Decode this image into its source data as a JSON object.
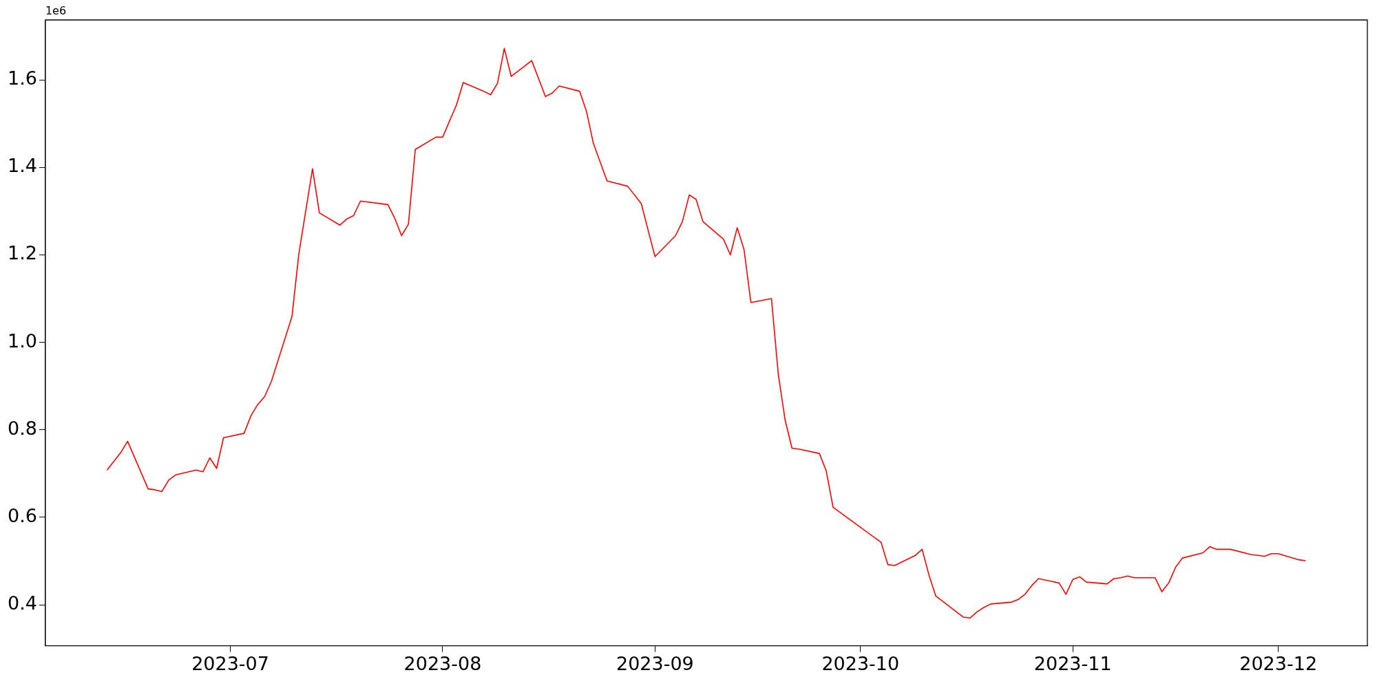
{
  "chart_data": {
    "type": "line",
    "annotations": [
      "1e6"
    ],
    "x": [
      "2023-06-13",
      "2023-06-14",
      "2023-06-15",
      "2023-06-16",
      "2023-06-19",
      "2023-06-20",
      "2023-06-21",
      "2023-06-22",
      "2023-06-23",
      "2023-06-26",
      "2023-06-27",
      "2023-06-28",
      "2023-06-29",
      "2023-06-30",
      "2023-07-03",
      "2023-07-04",
      "2023-07-05",
      "2023-07-06",
      "2023-07-07",
      "2023-07-10",
      "2023-07-11",
      "2023-07-13",
      "2023-07-14",
      "2023-07-17",
      "2023-07-18",
      "2023-07-19",
      "2023-07-20",
      "2023-07-24",
      "2023-07-25",
      "2023-07-26",
      "2023-07-27",
      "2023-07-28",
      "2023-07-31",
      "2023-08-01",
      "2023-08-02",
      "2023-08-03",
      "2023-08-04",
      "2023-08-07",
      "2023-08-08",
      "2023-08-09",
      "2023-08-10",
      "2023-08-11",
      "2023-08-14",
      "2023-08-16",
      "2023-08-17",
      "2023-08-18",
      "2023-08-21",
      "2023-08-22",
      "2023-08-23",
      "2023-08-25",
      "2023-08-28",
      "2023-08-30",
      "2023-08-31",
      "2023-09-01",
      "2023-09-04",
      "2023-09-05",
      "2023-09-06",
      "2023-09-07",
      "2023-09-08",
      "2023-09-11",
      "2023-09-12",
      "2023-09-13",
      "2023-09-14",
      "2023-09-15",
      "2023-09-18",
      "2023-09-19",
      "2023-09-20",
      "2023-09-21",
      "2023-09-22",
      "2023-09-25",
      "2023-09-26",
      "2023-09-27",
      "2023-10-04",
      "2023-10-05",
      "2023-10-06",
      "2023-10-09",
      "2023-10-10",
      "2023-10-11",
      "2023-10-12",
      "2023-10-16",
      "2023-10-17",
      "2023-10-18",
      "2023-10-19",
      "2023-10-20",
      "2023-10-23",
      "2023-10-24",
      "2023-10-25",
      "2023-10-26",
      "2023-10-27",
      "2023-10-30",
      "2023-10-31",
      "2023-11-01",
      "2023-11-02",
      "2023-11-03",
      "2023-11-06",
      "2023-11-07",
      "2023-11-08",
      "2023-11-09",
      "2023-11-10",
      "2023-11-13",
      "2023-11-14",
      "2023-11-15",
      "2023-11-16",
      "2023-11-17",
      "2023-11-20",
      "2023-11-21",
      "2023-11-22",
      "2023-11-24",
      "2023-11-27",
      "2023-11-28",
      "2023-11-29",
      "2023-11-30",
      "2023-12-01",
      "2023-12-04",
      "2023-12-05"
    ],
    "series": [
      {
        "color": "#ff0000",
        "values": [
          0.708,
          0.728,
          0.748,
          0.774,
          0.665,
          0.663,
          0.659,
          0.685,
          0.697,
          0.708,
          0.704,
          0.736,
          0.712,
          0.782,
          0.792,
          0.832,
          0.858,
          0.876,
          0.911,
          1.059,
          1.202,
          1.397,
          1.296,
          1.268,
          1.282,
          1.29,
          1.323,
          1.315,
          1.284,
          1.244,
          1.27,
          1.441,
          1.469,
          1.469,
          1.506,
          1.542,
          1.594,
          1.574,
          1.566,
          1.592,
          1.672,
          1.608,
          1.644,
          1.562,
          1.57,
          1.586,
          1.574,
          1.528,
          1.455,
          1.369,
          1.357,
          1.317,
          1.256,
          1.196,
          1.244,
          1.276,
          1.337,
          1.327,
          1.276,
          1.236,
          1.2,
          1.262,
          1.212,
          1.091,
          1.1,
          0.927,
          0.822,
          0.758,
          0.756,
          0.746,
          0.706,
          0.623,
          0.543,
          0.492,
          0.49,
          0.513,
          0.527,
          0.468,
          0.42,
          0.372,
          0.37,
          0.384,
          0.394,
          0.402,
          0.406,
          0.412,
          0.424,
          0.444,
          0.46,
          0.45,
          0.424,
          0.458,
          0.464,
          0.452,
          0.448,
          0.46,
          0.462,
          0.466,
          0.462,
          0.462,
          0.43,
          0.45,
          0.486,
          0.507,
          0.519,
          0.533,
          0.527,
          0.527,
          0.515,
          0.513,
          0.511,
          0.517,
          0.517,
          0.503,
          0.501
        ]
      }
    ],
    "xlim": [
      "2023-06-04",
      "2023-12-14"
    ],
    "xticks": [
      "2023-07",
      "2023-08",
      "2023-09",
      "2023-10",
      "2023-11",
      "2023-12"
    ],
    "ylim": [
      0.3065,
      1.737
    ],
    "yticks": [
      0.4,
      0.6,
      0.8,
      {
        "value": 1,
        "label": "1.0"
      },
      1.2,
      1.4,
      1.6
    ],
    "grid": false,
    "legend": false,
    "marker": "none",
    "line_style": "solid"
  }
}
